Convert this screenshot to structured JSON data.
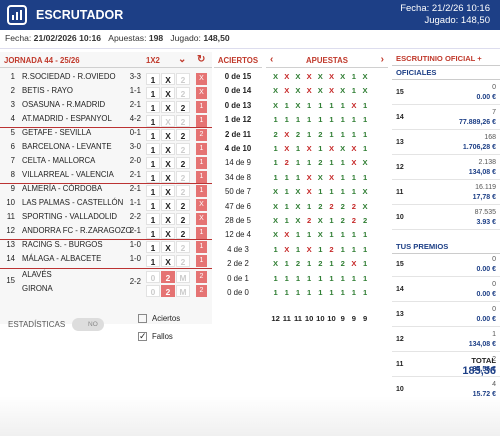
{
  "header": {
    "title": "ESCRUTADOR",
    "fecha": "Fecha: 21/2/26 10:16",
    "jugado": "Jugado: 148,50"
  },
  "subbar": {
    "fecha_label": "Fecha:",
    "fecha": "21/02/2026 10:16",
    "apuestas_label": "Apuestas:",
    "apuestas": "198",
    "jugado_label": "Jugado:",
    "jugado": "148,50"
  },
  "left": {
    "jornada": "JORNADA 44 - 25/26",
    "mode": "1X2",
    "matches": [
      {
        "n": "1",
        "m": "R.SOCIEDAD - R.OVIEDO",
        "s": "3-3",
        "c": [
          "1",
          "X",
          "2"
        ],
        "sel": [
          0,
          1
        ],
        "r": "X"
      },
      {
        "n": "2",
        "m": "BETIS - RAYO",
        "s": "1-1",
        "c": [
          "1",
          "X",
          "2"
        ],
        "sel": [
          0,
          1
        ],
        "r": "X"
      },
      {
        "n": "3",
        "m": "OSASUNA - R.MADRID",
        "s": "2-1",
        "c": [
          "1",
          "X",
          "2"
        ],
        "sel": [
          0,
          1,
          2
        ],
        "r": "1"
      },
      {
        "n": "4",
        "m": "AT.MADRID - ESPANYOL",
        "s": "4-2",
        "c": [
          "1",
          "X",
          "2"
        ],
        "sel": [
          0
        ],
        "r": "1"
      },
      {
        "n": "5",
        "m": "GETAFE - SEVILLA",
        "s": "0-1",
        "c": [
          "1",
          "X",
          "2"
        ],
        "sel": [
          0,
          1,
          2
        ],
        "r": "2"
      },
      {
        "n": "6",
        "m": "BARCELONA - LEVANTE",
        "s": "3-0",
        "c": [
          "1",
          "X",
          "2"
        ],
        "sel": [
          0,
          1
        ],
        "r": "1"
      },
      {
        "n": "7",
        "m": "CELTA - MALLORCA",
        "s": "2-0",
        "c": [
          "1",
          "X",
          "2"
        ],
        "sel": [
          0,
          1,
          2
        ],
        "r": "1"
      },
      {
        "n": "8",
        "m": "VILLARREAL - VALENCIA",
        "s": "2-1",
        "c": [
          "1",
          "X",
          "2"
        ],
        "sel": [
          0,
          1
        ],
        "r": "1"
      },
      {
        "n": "9",
        "m": "ALMERÍA - CÓRDOBA",
        "s": "2-1",
        "c": [
          "1",
          "X",
          "2"
        ],
        "sel": [
          0,
          1
        ],
        "r": "1"
      },
      {
        "n": "10",
        "m": "LAS PALMAS - CASTELLÓN",
        "s": "1-1",
        "c": [
          "1",
          "X",
          "2"
        ],
        "sel": [
          0,
          1,
          2
        ],
        "r": "X"
      },
      {
        "n": "11",
        "m": "SPORTING - VALLADOLID",
        "s": "2-2",
        "c": [
          "1",
          "X",
          "2"
        ],
        "sel": [
          0,
          1,
          2
        ],
        "r": "X"
      },
      {
        "n": "12",
        "m": "ANDORRA FC - R.ZARAGOZO",
        "s": "2-1",
        "c": [
          "1",
          "X",
          "2"
        ],
        "sel": [
          0,
          1,
          2
        ],
        "r": "1"
      },
      {
        "n": "13",
        "m": "RACING S. - BURGOS",
        "s": "1-0",
        "c": [
          "1",
          "X",
          "2"
        ],
        "sel": [
          0,
          1
        ],
        "r": "1"
      },
      {
        "n": "14",
        "m": "MÁLAGA - ALBACETE",
        "s": "1-0",
        "c": [
          "1",
          "X",
          "2"
        ],
        "sel": [
          0,
          1
        ],
        "r": "1"
      }
    ],
    "pleno": {
      "n": "15",
      "h": "ALAVÉS",
      "a": "GIRONA",
      "s": "2-2",
      "c": [
        "0",
        "2",
        "M"
      ],
      "c2": [
        "0",
        "2",
        "M"
      ],
      "r1": "2",
      "r2": "2"
    },
    "stats_label": "ESTADÍSTICAS",
    "toggle": "NO",
    "aciertos_label": "Aciertos",
    "fallos_label": "Fallos"
  },
  "aciertos": {
    "title": "ACIERTOS",
    "rows": [
      "0 de 15",
      "0 de 14",
      "0 de 13",
      "1 de 12",
      "2 de 11",
      "4 de 10",
      "14 de 9",
      "34 de 8",
      "50 de 7",
      "47 de 6",
      "28 de 5",
      "12 de 4",
      "4 de 3",
      "2 de 2",
      "0 de 1",
      "0 de 0"
    ]
  },
  "apuestas": {
    "title": "APUESTAS",
    "rows": [
      "XXXXXXX1X",
      "XXXXXXX1X",
      "X1X1111X1",
      "111111111",
      "2X2121111",
      "1X1X1XXX1",
      "1211211XX",
      "111XXX111",
      "X1XX1111X",
      "X1X12222X",
      "X1X2X1222",
      "XX11X1111",
      "1X1X12111",
      "X121212X1",
      "111111111",
      "111111111"
    ],
    "totals": [
      "12",
      "11",
      "11",
      "10",
      "10",
      "10",
      "9",
      "9",
      "9"
    ]
  },
  "escrutinio": {
    "title": "ESCRUTINIO OFICIAL +",
    "oficiales": "OFICIALES",
    "rows": [
      {
        "c": "15",
        "n": "0",
        "v": "0.00 €"
      },
      {
        "c": "14",
        "n": "7",
        "v": "77.889,26 €"
      },
      {
        "c": "13",
        "n": "168",
        "v": "1.706,28 €"
      },
      {
        "c": "12",
        "n": "2.138",
        "v": "134,08 €"
      },
      {
        "c": "11",
        "n": "16.119",
        "v": "17,78 €"
      },
      {
        "c": "10",
        "n": "87.535",
        "v": "3.93 €"
      }
    ],
    "premios": "TUS PREMIOS",
    "prow": [
      {
        "c": "15",
        "n": "0",
        "v": "0.00 €"
      },
      {
        "c": "14",
        "n": "0",
        "v": "0.00 €"
      },
      {
        "c": "13",
        "n": "0",
        "v": "0.00 €"
      },
      {
        "c": "12",
        "n": "1",
        "v": "134,08 €"
      },
      {
        "c": "11",
        "n": "2",
        "v": "35,56 €"
      },
      {
        "c": "10",
        "n": "4",
        "v": "15.72 €"
      }
    ],
    "total_label": "TOTAL",
    "total": "185,36"
  }
}
